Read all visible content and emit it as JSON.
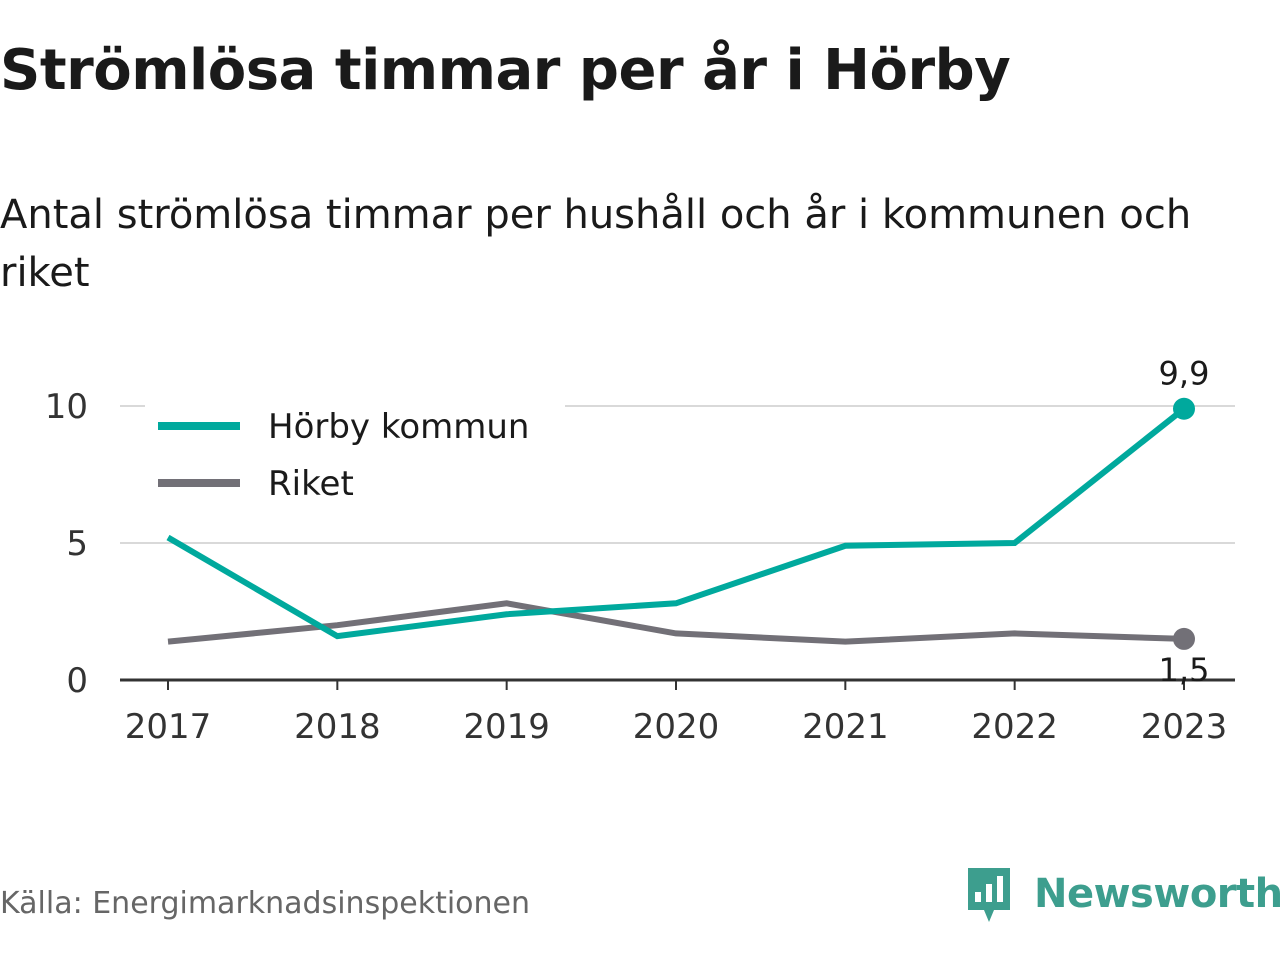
{
  "title": "Strömlösa timmar per år i Hörby",
  "subtitle": "Antal strömlösa timmar per hushåll och år i kommunen och riket",
  "source": "Källa: Energimarknadsinspektionen",
  "brand": {
    "name": "Newsworthy",
    "icon": "newsworthy-logo-icon",
    "color": "#3d9e8e"
  },
  "chart_data": {
    "type": "line",
    "x": [
      "2017",
      "2018",
      "2019",
      "2020",
      "2021",
      "2022",
      "2023"
    ],
    "ylim": [
      0,
      10
    ],
    "yticks": [
      "0",
      "5",
      "10"
    ],
    "grid": true,
    "legend_position": "top-left",
    "series": [
      {
        "name": "Hörby kommun",
        "color": "#00a99d",
        "values": [
          5.2,
          1.6,
          2.4,
          2.8,
          4.9,
          5.0,
          9.9
        ]
      },
      {
        "name": "Riket",
        "color": "#727077",
        "values": [
          1.4,
          2.0,
          2.8,
          1.7,
          1.4,
          1.7,
          1.5
        ]
      }
    ],
    "end_labels": [
      "9,9",
      "1,5"
    ]
  }
}
